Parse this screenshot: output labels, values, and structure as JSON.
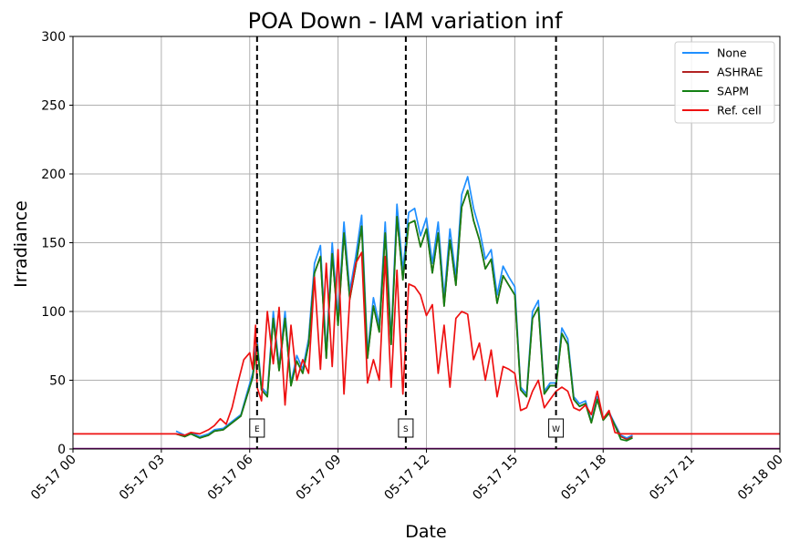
{
  "chart_data": {
    "type": "line",
    "title": "POA Down - IAM variation inf",
    "xlabel": "Date",
    "ylabel": "Irradiance",
    "ylim": [
      0,
      300
    ],
    "y_ticks": [
      "0",
      "50",
      "100",
      "150",
      "200",
      "250",
      "300"
    ],
    "x_range_hours": [
      0,
      24
    ],
    "x_tick_labels": [
      "05-17 00",
      "05-17 03",
      "05-17 06",
      "05-17 09",
      "05-17 12",
      "05-17 15",
      "05-17 18",
      "05-17 21",
      "05-18 00"
    ],
    "grid": true,
    "legend_position": "top-right",
    "markers": [
      {
        "label": "E",
        "hour": 6.25
      },
      {
        "label": "S",
        "hour": 11.3
      },
      {
        "label": "W",
        "hour": 16.4
      }
    ],
    "series": [
      {
        "name": "None",
        "color": "#1f8fff",
        "points": [
          [
            3.5,
            13
          ],
          [
            3.8,
            10
          ],
          [
            4.0,
            12
          ],
          [
            4.3,
            9
          ],
          [
            4.6,
            11
          ],
          [
            4.8,
            14
          ],
          [
            5.1,
            15
          ],
          [
            5.4,
            20
          ],
          [
            5.7,
            25
          ],
          [
            5.9,
            40
          ],
          [
            6.1,
            55
          ],
          [
            6.25,
            80
          ],
          [
            6.4,
            45
          ],
          [
            6.6,
            40
          ],
          [
            6.8,
            100
          ],
          [
            7.0,
            60
          ],
          [
            7.2,
            100
          ],
          [
            7.4,
            48
          ],
          [
            7.6,
            68
          ],
          [
            7.8,
            58
          ],
          [
            8.0,
            80
          ],
          [
            8.2,
            135
          ],
          [
            8.4,
            148
          ],
          [
            8.6,
            70
          ],
          [
            8.8,
            150
          ],
          [
            9.0,
            95
          ],
          [
            9.2,
            165
          ],
          [
            9.4,
            115
          ],
          [
            9.6,
            140
          ],
          [
            9.8,
            170
          ],
          [
            10.0,
            70
          ],
          [
            10.2,
            110
          ],
          [
            10.4,
            90
          ],
          [
            10.6,
            165
          ],
          [
            10.8,
            80
          ],
          [
            11.0,
            178
          ],
          [
            11.2,
            130
          ],
          [
            11.4,
            172
          ],
          [
            11.6,
            175
          ],
          [
            11.8,
            155
          ],
          [
            12.0,
            168
          ],
          [
            12.2,
            135
          ],
          [
            12.4,
            165
          ],
          [
            12.6,
            110
          ],
          [
            12.8,
            160
          ],
          [
            13.0,
            125
          ],
          [
            13.2,
            185
          ],
          [
            13.4,
            198
          ],
          [
            13.6,
            175
          ],
          [
            13.8,
            160
          ],
          [
            14.0,
            138
          ],
          [
            14.2,
            145
          ],
          [
            14.4,
            112
          ],
          [
            14.6,
            133
          ],
          [
            14.8,
            125
          ],
          [
            15.0,
            118
          ],
          [
            15.2,
            45
          ],
          [
            15.4,
            40
          ],
          [
            15.6,
            100
          ],
          [
            15.8,
            108
          ],
          [
            16.0,
            42
          ],
          [
            16.2,
            48
          ],
          [
            16.4,
            48
          ],
          [
            16.6,
            88
          ],
          [
            16.8,
            80
          ],
          [
            17.0,
            38
          ],
          [
            17.2,
            33
          ],
          [
            17.4,
            35
          ],
          [
            17.6,
            20
          ],
          [
            17.8,
            38
          ],
          [
            18.0,
            22
          ],
          [
            18.2,
            27
          ],
          [
            18.4,
            18
          ],
          [
            18.6,
            10
          ],
          [
            18.8,
            8
          ],
          [
            19.0,
            10
          ]
        ]
      },
      {
        "name": "ASHRAE",
        "color": "#b22222",
        "points": [
          [
            3.5,
            11
          ],
          [
            3.8,
            9
          ],
          [
            4.0,
            11
          ],
          [
            4.3,
            8
          ],
          [
            4.6,
            10
          ],
          [
            4.8,
            13
          ],
          [
            5.1,
            14
          ],
          [
            5.4,
            19
          ],
          [
            5.7,
            24
          ],
          [
            5.9,
            38
          ],
          [
            6.1,
            52
          ],
          [
            6.25,
            76
          ],
          [
            6.4,
            43
          ],
          [
            6.6,
            38
          ],
          [
            6.8,
            95
          ],
          [
            7.0,
            57
          ],
          [
            7.2,
            95
          ],
          [
            7.4,
            46
          ],
          [
            7.6,
            64
          ],
          [
            7.8,
            55
          ],
          [
            8.0,
            76
          ],
          [
            8.2,
            128
          ],
          [
            8.4,
            140
          ],
          [
            8.6,
            66
          ],
          [
            8.8,
            142
          ],
          [
            9.0,
            90
          ],
          [
            9.2,
            157
          ],
          [
            9.4,
            109
          ],
          [
            9.6,
            133
          ],
          [
            9.8,
            162
          ],
          [
            10.0,
            66
          ],
          [
            10.2,
            104
          ],
          [
            10.4,
            85
          ],
          [
            10.6,
            157
          ],
          [
            10.8,
            76
          ],
          [
            11.0,
            169
          ],
          [
            11.2,
            123
          ],
          [
            11.4,
            164
          ],
          [
            11.6,
            166
          ],
          [
            11.8,
            147
          ],
          [
            12.0,
            160
          ],
          [
            12.2,
            128
          ],
          [
            12.4,
            157
          ],
          [
            12.6,
            104
          ],
          [
            12.8,
            152
          ],
          [
            13.0,
            119
          ],
          [
            13.2,
            176
          ],
          [
            13.4,
            188
          ],
          [
            13.6,
            166
          ],
          [
            13.8,
            152
          ],
          [
            14.0,
            131
          ],
          [
            14.2,
            138
          ],
          [
            14.4,
            106
          ],
          [
            14.6,
            126
          ],
          [
            14.8,
            119
          ],
          [
            15.0,
            112
          ],
          [
            15.2,
            43
          ],
          [
            15.4,
            38
          ],
          [
            15.6,
            95
          ],
          [
            15.8,
            103
          ],
          [
            16.0,
            40
          ],
          [
            16.2,
            46
          ],
          [
            16.4,
            46
          ],
          [
            16.6,
            84
          ],
          [
            16.8,
            76
          ],
          [
            17.0,
            36
          ],
          [
            17.2,
            31
          ],
          [
            17.4,
            33
          ],
          [
            17.6,
            19
          ],
          [
            17.8,
            36
          ],
          [
            18.0,
            21
          ],
          [
            18.2,
            26
          ],
          [
            18.4,
            17
          ],
          [
            18.6,
            9
          ],
          [
            18.8,
            7
          ],
          [
            19.0,
            9
          ]
        ]
      },
      {
        "name": "SAPM",
        "color": "#138013",
        "points": [
          [
            3.5,
            11
          ],
          [
            3.8,
            9
          ],
          [
            4.0,
            11
          ],
          [
            4.3,
            8
          ],
          [
            4.6,
            10
          ],
          [
            4.8,
            13
          ],
          [
            5.1,
            14
          ],
          [
            5.4,
            19
          ],
          [
            5.7,
            24
          ],
          [
            5.9,
            38
          ],
          [
            6.1,
            52
          ],
          [
            6.25,
            76
          ],
          [
            6.4,
            43
          ],
          [
            6.6,
            38
          ],
          [
            6.8,
            95
          ],
          [
            7.0,
            57
          ],
          [
            7.2,
            95
          ],
          [
            7.4,
            46
          ],
          [
            7.6,
            64
          ],
          [
            7.8,
            55
          ],
          [
            8.0,
            76
          ],
          [
            8.2,
            128
          ],
          [
            8.4,
            140
          ],
          [
            8.6,
            66
          ],
          [
            8.8,
            142
          ],
          [
            9.0,
            90
          ],
          [
            9.2,
            157
          ],
          [
            9.4,
            109
          ],
          [
            9.6,
            133
          ],
          [
            9.8,
            162
          ],
          [
            10.0,
            66
          ],
          [
            10.2,
            104
          ],
          [
            10.4,
            85
          ],
          [
            10.6,
            157
          ],
          [
            10.8,
            76
          ],
          [
            11.0,
            169
          ],
          [
            11.2,
            123
          ],
          [
            11.4,
            164
          ],
          [
            11.6,
            166
          ],
          [
            11.8,
            147
          ],
          [
            12.0,
            160
          ],
          [
            12.2,
            128
          ],
          [
            12.4,
            157
          ],
          [
            12.6,
            104
          ],
          [
            12.8,
            152
          ],
          [
            13.0,
            119
          ],
          [
            13.2,
            176
          ],
          [
            13.4,
            188
          ],
          [
            13.6,
            166
          ],
          [
            13.8,
            152
          ],
          [
            14.0,
            131
          ],
          [
            14.2,
            138
          ],
          [
            14.4,
            106
          ],
          [
            14.6,
            126
          ],
          [
            14.8,
            119
          ],
          [
            15.0,
            112
          ],
          [
            15.2,
            43
          ],
          [
            15.4,
            38
          ],
          [
            15.6,
            95
          ],
          [
            15.8,
            103
          ],
          [
            16.0,
            40
          ],
          [
            16.2,
            46
          ],
          [
            16.4,
            46
          ],
          [
            16.6,
            84
          ],
          [
            16.8,
            76
          ],
          [
            17.0,
            36
          ],
          [
            17.2,
            31
          ],
          [
            17.4,
            33
          ],
          [
            17.6,
            19
          ],
          [
            17.8,
            36
          ],
          [
            18.0,
            21
          ],
          [
            18.2,
            26
          ],
          [
            18.4,
            17
          ],
          [
            18.6,
            7
          ],
          [
            18.8,
            6
          ],
          [
            19.0,
            8
          ]
        ]
      },
      {
        "name": "Ref. cell",
        "color": "#ee1111",
        "points": [
          [
            0,
            11
          ],
          [
            3.5,
            11
          ],
          [
            3.8,
            10
          ],
          [
            4.0,
            12
          ],
          [
            4.3,
            11
          ],
          [
            4.6,
            14
          ],
          [
            4.8,
            17
          ],
          [
            5.0,
            22
          ],
          [
            5.2,
            18
          ],
          [
            5.4,
            30
          ],
          [
            5.6,
            48
          ],
          [
            5.8,
            65
          ],
          [
            6.0,
            70
          ],
          [
            6.1,
            58
          ],
          [
            6.2,
            90
          ],
          [
            6.25,
            45
          ],
          [
            6.4,
            35
          ],
          [
            6.6,
            100
          ],
          [
            6.8,
            62
          ],
          [
            7.0,
            103
          ],
          [
            7.2,
            32
          ],
          [
            7.4,
            90
          ],
          [
            7.6,
            50
          ],
          [
            7.8,
            65
          ],
          [
            8.0,
            55
          ],
          [
            8.2,
            125
          ],
          [
            8.4,
            58
          ],
          [
            8.6,
            135
          ],
          [
            8.8,
            60
          ],
          [
            9.0,
            145
          ],
          [
            9.2,
            40
          ],
          [
            9.4,
            110
          ],
          [
            9.6,
            135
          ],
          [
            9.8,
            143
          ],
          [
            10.0,
            48
          ],
          [
            10.2,
            65
          ],
          [
            10.4,
            50
          ],
          [
            10.6,
            140
          ],
          [
            10.8,
            45
          ],
          [
            11.0,
            130
          ],
          [
            11.2,
            40
          ],
          [
            11.4,
            120
          ],
          [
            11.6,
            118
          ],
          [
            11.8,
            112
          ],
          [
            12.0,
            97
          ],
          [
            12.2,
            105
          ],
          [
            12.4,
            55
          ],
          [
            12.6,
            90
          ],
          [
            12.8,
            45
          ],
          [
            13.0,
            95
          ],
          [
            13.2,
            100
          ],
          [
            13.4,
            98
          ],
          [
            13.6,
            65
          ],
          [
            13.8,
            77
          ],
          [
            14.0,
            50
          ],
          [
            14.2,
            72
          ],
          [
            14.4,
            38
          ],
          [
            14.6,
            60
          ],
          [
            14.8,
            58
          ],
          [
            15.0,
            55
          ],
          [
            15.2,
            28
          ],
          [
            15.4,
            30
          ],
          [
            15.6,
            42
          ],
          [
            15.8,
            50
          ],
          [
            16.0,
            30
          ],
          [
            16.2,
            36
          ],
          [
            16.4,
            42
          ],
          [
            16.6,
            45
          ],
          [
            16.8,
            42
          ],
          [
            17.0,
            30
          ],
          [
            17.2,
            28
          ],
          [
            17.4,
            32
          ],
          [
            17.6,
            25
          ],
          [
            17.8,
            42
          ],
          [
            18.0,
            22
          ],
          [
            18.2,
            28
          ],
          [
            18.4,
            12
          ],
          [
            18.6,
            11
          ],
          [
            24,
            11
          ]
        ]
      }
    ]
  }
}
